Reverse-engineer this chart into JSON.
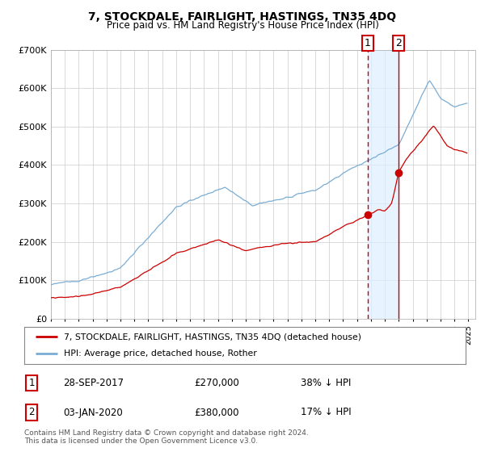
{
  "title": "7, STOCKDALE, FAIRLIGHT, HASTINGS, TN35 4DQ",
  "subtitle": "Price paid vs. HM Land Registry's House Price Index (HPI)",
  "legend_label_red": "7, STOCKDALE, FAIRLIGHT, HASTINGS, TN35 4DQ (detached house)",
  "legend_label_blue": "HPI: Average price, detached house, Rother",
  "footer": "Contains HM Land Registry data © Crown copyright and database right 2024.\nThis data is licensed under the Open Government Licence v3.0.",
  "table_rows": [
    {
      "num": "1",
      "date": "28-SEP-2017",
      "price": "£270,000",
      "pct": "38% ↓ HPI"
    },
    {
      "num": "2",
      "date": "03-JAN-2020",
      "price": "£380,000",
      "pct": "17% ↓ HPI"
    }
  ],
  "marker1_x": 2017.75,
  "marker1_y": 270000,
  "marker2_x": 2020.0,
  "marker2_y": 380000,
  "red_color": "#cc0000",
  "blue_color": "#7aadd4",
  "shade_color": "#ddeeff",
  "vline_color": "#cc0000",
  "marker_box_color": "#cc0000",
  "ylim": [
    0,
    700000
  ],
  "xlim_left": 1995,
  "xlim_right": 2025.5,
  "noise_seed": 42
}
